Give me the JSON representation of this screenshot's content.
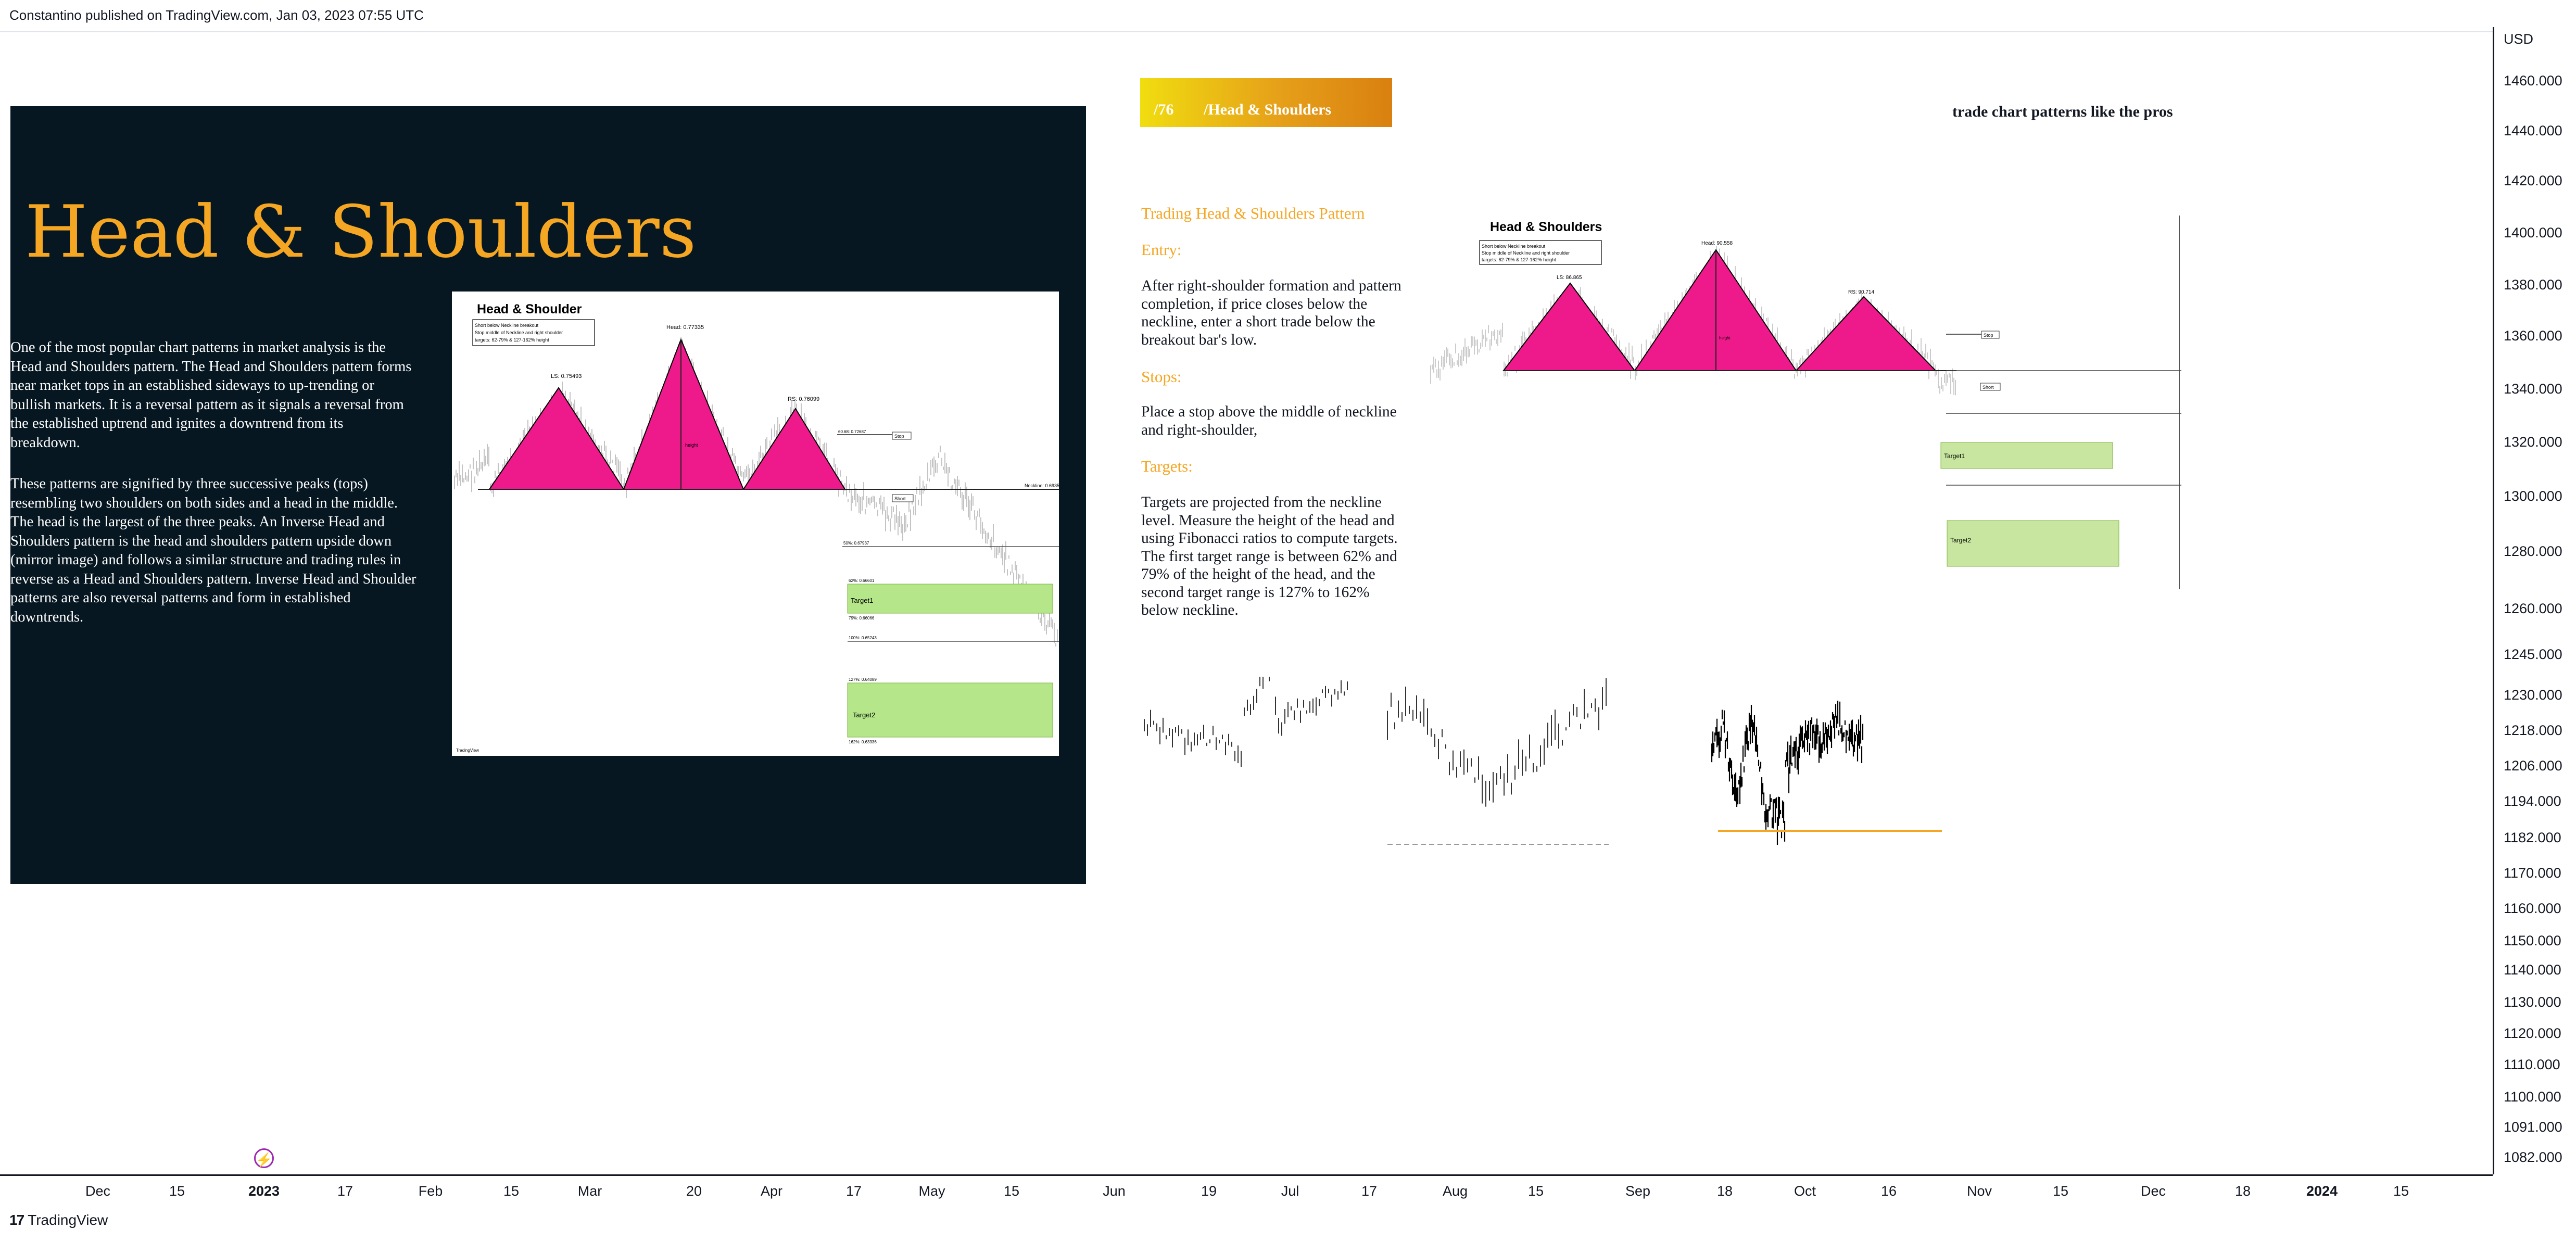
{
  "header": {
    "publish_info": "Constantino published on TradingView.com, Jan 03, 2023 07:55 UTC"
  },
  "price_axis": {
    "currency": "USD",
    "ticks": [
      "1460.000",
      "1440.000",
      "1420.000",
      "1400.000",
      "1380.000",
      "1360.000",
      "1340.000",
      "1320.000",
      "1300.000",
      "1280.000",
      "1260.000",
      "1245.000",
      "1230.000",
      "1218.000",
      "1206.000",
      "1194.000",
      "1182.000",
      "1170.000",
      "1160.000",
      "1150.000",
      "1140.000",
      "1130.000",
      "1120.000",
      "1110.000",
      "1100.000",
      "1091.000",
      "1082.000"
    ]
  },
  "time_axis": {
    "ticks": [
      "Dec",
      "15",
      "2023",
      "17",
      "Feb",
      "15",
      "Mar",
      "20",
      "Apr",
      "17",
      "May",
      "15",
      "Jun",
      "19",
      "Jul",
      "17",
      "Aug",
      "15",
      "Sep",
      "18",
      "Oct",
      "16",
      "Nov",
      "15",
      "Dec",
      "18",
      "2024",
      "15"
    ]
  },
  "footer": {
    "logo_mark": "17",
    "logo_text": "TradingView"
  },
  "dark_slide": {
    "title": "Head & Shoulders",
    "paragraph_1": "One of the most popular chart patterns in market analysis is the Head and Shoulders pattern. The Head and Shoulders pattern forms near market tops in an established sideways to up-trending or bullish markets. It is a reversal pattern as it signals a reversal from the established uptrend and ignites a downtrend from its breakdown.",
    "paragraph_2": "These patterns are signified by three successive peaks (tops) resembling two shoulders on both sides and a head in the middle. The head is the largest of the three peaks.  An Inverse Head and Shoulders pattern is the head and shoulders pattern upside down (mirror image) and follows a similar structure and trading rules in reverse as a Head and Shoulders pattern. Inverse Head and Shoulder patterns are also reversal patterns and form in established downtrends."
  },
  "thumb_1": {
    "title": "Head & Shoulder",
    "note_lines": [
      "Short below Neckline breakout",
      "Stop middle of Neckline and right shoulder",
      "targets: 62-79% & 127-162% height"
    ],
    "ls_label": "LS: 0.75493",
    "head_label": "Head: 0.77335",
    "rs_label": "RS: 0.76099",
    "height_label": "height",
    "stop_label": "Stop",
    "short_label": "Short",
    "neckline_label": "Neckline: 0.69352",
    "target1_label": "Target1",
    "target2_label": "Target2",
    "fib_labels": [
      "50%: 0.67937",
      "62%: 0.66601",
      "79%: 0.66066",
      "100%: 0.65243",
      "127%: 0.64089",
      "162%: 0.63336"
    ],
    "logo": "TradingView"
  },
  "right_slide": {
    "badge_number": "/76",
    "badge_title": "/Head & Shoulders",
    "tagline": "trade chart patterns like the pros",
    "section_title": "Trading Head & Shoulders Pattern",
    "entry_label": "Entry:",
    "entry_text": "After right-shoulder formation and pattern completion, if price closes below the neckline, enter a short trade below the breakout bar's low.",
    "stops_label": "Stops:",
    "stops_text": "Place a stop above  the middle of neckline and right-shoulder,",
    "targets_label": "Targets:",
    "targets_text": "Targets are projected from the neckline level. Measure the height of the head and using Fibonacci ratios to compute targets.\nThe first target range is between 62% and 79% of the height of the head, and the second target range is 127% to 162% below neckline."
  },
  "thumb_2": {
    "title": "Head & Shoulders",
    "note_lines": [
      "Short below Neckline breakout",
      "Stop middle of Neckline and right shoulder",
      "targets: 62-79% & 127-162% height"
    ],
    "ls_label": "LS: 86.865",
    "head_label": "Head: 90.558",
    "rs_label": "RS: 90.714",
    "height_label": "height",
    "stop_label": "Stop",
    "short_label": "Short",
    "target1_label": "Target1",
    "target2_label": "Target2"
  },
  "colors": {
    "dark_panel": "#061722",
    "accent_orange": "#f5a623",
    "pattern_pink": "#ee1a8c",
    "target_green": "#b5e68a",
    "axis_text": "#131722",
    "flash_purple": "#9c27b0"
  }
}
